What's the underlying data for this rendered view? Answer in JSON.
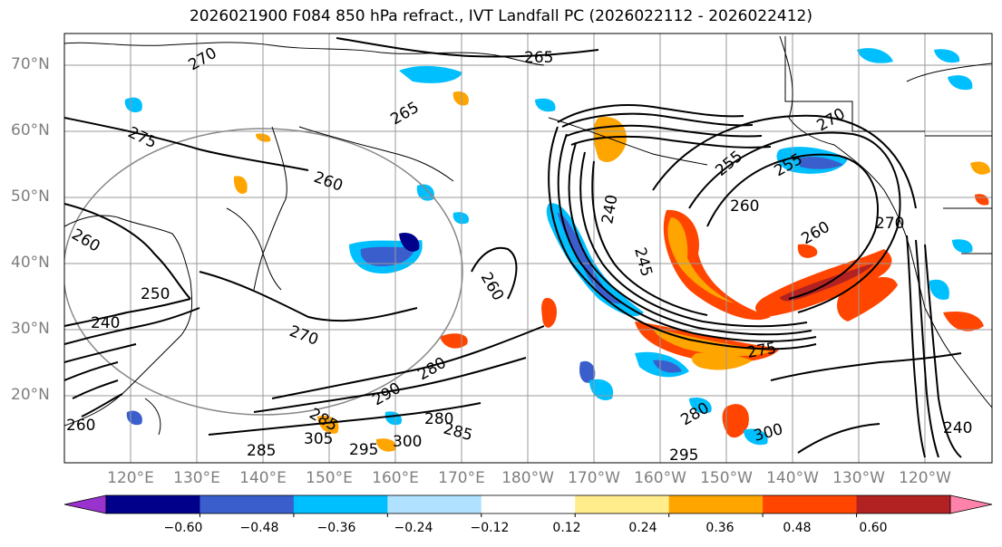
{
  "title": "2026021900 F084 850 hPa refract., IVT Landfall PC (2026022112 - 2026022412)",
  "lat_labels": [
    "70°N",
    "60°N",
    "50°N",
    "40°N",
    "30°N",
    "20°N"
  ],
  "lon_labels": [
    "120°E",
    "130°E",
    "140°E",
    "150°E",
    "160°E",
    "170°E",
    "180°W",
    "170°W",
    "160°W",
    "150°W",
    "140°W",
    "130°W",
    "120°W"
  ],
  "colorbar": {
    "colors": [
      "#9a32cd",
      "#00008b",
      "#3a5fcd",
      "#00bfff",
      "#b0e2ff",
      "#ffffff",
      "#ffec8b",
      "#ffa500",
      "#ff4500",
      "#b22222",
      "#ff82ab"
    ],
    "tick_labels": [
      "−0.60",
      "−0.48",
      "−0.36",
      "−0.24",
      "−0.12",
      "0.12",
      "0.24",
      "0.36",
      "0.48",
      "0.60"
    ]
  },
  "contour_labels": [
    {
      "text": "265"
    },
    {
      "text": "270"
    },
    {
      "text": "275"
    },
    {
      "text": "265"
    },
    {
      "text": "260"
    },
    {
      "text": "260"
    },
    {
      "text": "250"
    },
    {
      "text": "240"
    },
    {
      "text": "270"
    },
    {
      "text": "260"
    },
    {
      "text": "240"
    },
    {
      "text": "245"
    },
    {
      "text": "255"
    },
    {
      "text": "255"
    },
    {
      "text": "260"
    },
    {
      "text": "260"
    },
    {
      "text": "270"
    },
    {
      "text": "270"
    },
    {
      "text": "275"
    },
    {
      "text": "280"
    },
    {
      "text": "290"
    },
    {
      "text": "285"
    },
    {
      "text": "280"
    },
    {
      "text": "285"
    },
    {
      "text": "305"
    },
    {
      "text": "295"
    },
    {
      "text": "300"
    },
    {
      "text": "300"
    },
    {
      "text": "295"
    },
    {
      "text": "280"
    },
    {
      "text": "240"
    },
    {
      "text": "260"
    },
    {
      "text": "285"
    }
  ]
}
